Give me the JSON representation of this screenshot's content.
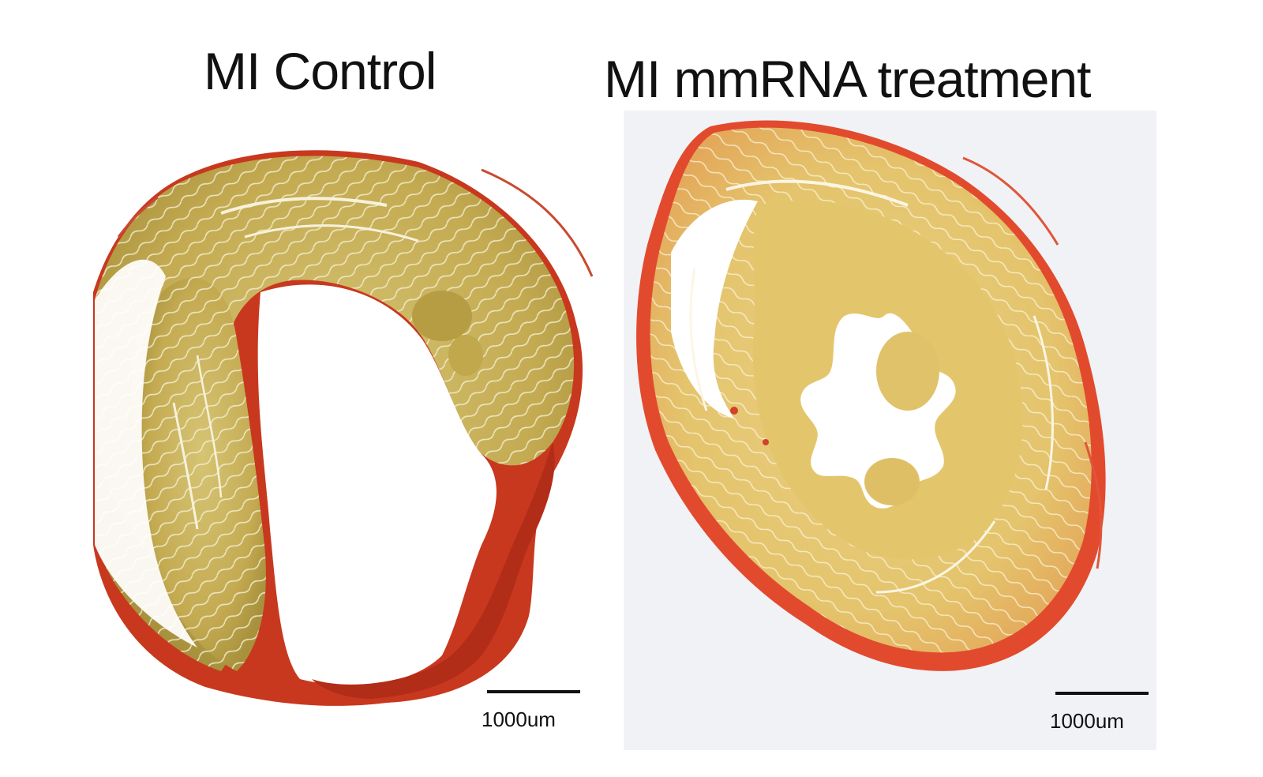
{
  "panels": [
    {
      "title": "MI Control",
      "scale_bar_label": "1000um"
    },
    {
      "title": "MI mmRNA treatment",
      "scale_bar_label": "1000um"
    }
  ],
  "colors": {
    "myocardium": "#c9b15a",
    "scar_collagen": "#c8321e",
    "treated_tissue": "#e8c86a",
    "background_right": "#f1f2f5"
  }
}
